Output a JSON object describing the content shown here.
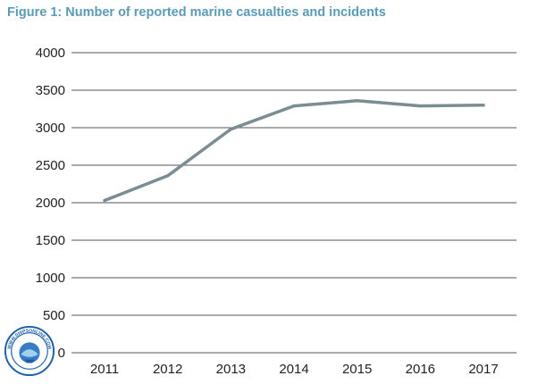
{
  "chart_data": {
    "type": "line",
    "title": "Figure 1: Number of reported marine casualties and incidents",
    "xlabel": "",
    "ylabel": "",
    "categories": [
      "2011",
      "2012",
      "2013",
      "2014",
      "2015",
      "2016",
      "2017"
    ],
    "series": [
      {
        "name": "Reported marine casualties and incidents",
        "values": [
          2030,
          2360,
          2980,
          3290,
          3360,
          3290,
          3300
        ],
        "color": "#7b8c93"
      }
    ],
    "y_ticks": [
      "0",
      "500",
      "1000",
      "1500",
      "2000",
      "2500",
      "3000",
      "3500",
      "4000"
    ],
    "ylim": [
      0,
      4000
    ],
    "grid": true,
    "gridline_color": "#555555",
    "legend": "none"
  },
  "watermark": {
    "description": "circular seal logo",
    "text": "WWW.SHIPSONLINE.COM",
    "color": "#1c5fa8"
  }
}
